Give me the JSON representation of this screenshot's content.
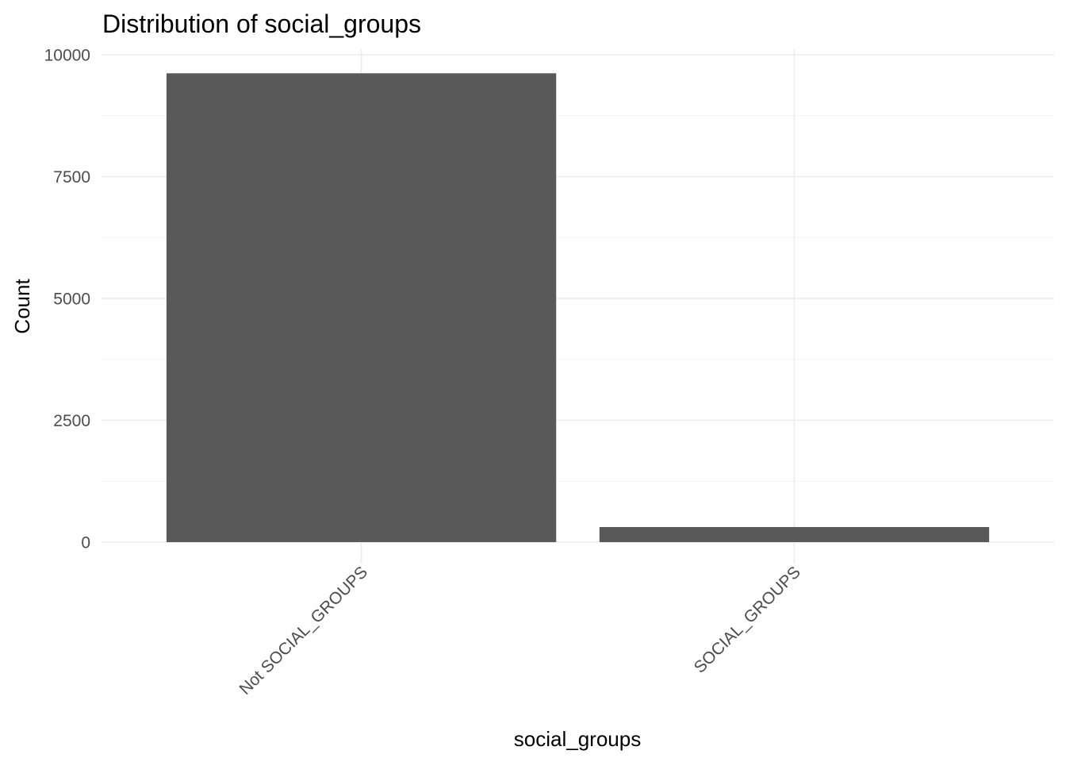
{
  "chart_data": {
    "type": "bar",
    "title": "Distribution of social_groups",
    "xlabel": "social_groups",
    "ylabel": "Count",
    "categories": [
      "Not SOCIAL_GROUPS",
      "SOCIAL_GROUPS"
    ],
    "values": [
      9620,
      310
    ],
    "ylim": [
      0,
      10000
    ],
    "yticks": [
      0,
      2500,
      5000,
      7500,
      10000
    ],
    "ytick_labels": [
      "0",
      "2500",
      "5000",
      "7500",
      "10000"
    ],
    "grid": true,
    "legend": "none",
    "colors": {
      "bar": "#595959",
      "grid_major": "#ebebeb",
      "grid_minor": "#f2f2f2",
      "tick_text": "#4d4d4d",
      "title_text": "#000000"
    }
  }
}
